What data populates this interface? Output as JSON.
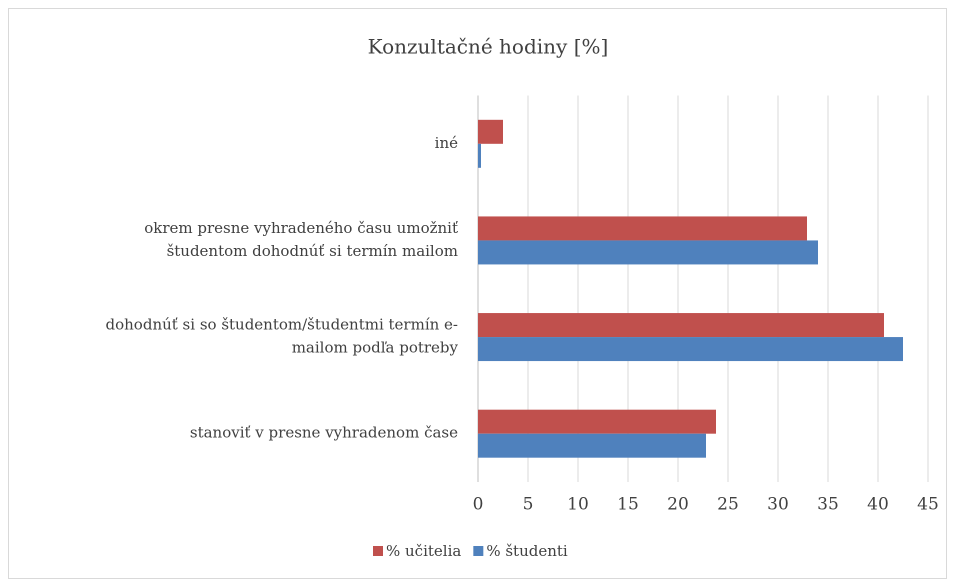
{
  "chart_data": {
    "type": "hbar",
    "title": "Konzultačné hodiny [%]",
    "categories": [
      [
        "iné"
      ],
      [
        "okrem presne vyhradeného času umožniť",
        "študentom dohodnúť si termín mailom"
      ],
      [
        "dohodnúť si so študentom/študentmi termín e-",
        "mailom podľa potreby"
      ],
      [
        "stanoviť v presne vyhradenom čase"
      ]
    ],
    "series": [
      {
        "name": "% učitelia",
        "color": "#c0504d",
        "values": [
          2.5,
          32.9,
          40.6,
          23.8
        ]
      },
      {
        "name": "% študenti",
        "color": "#4f81bd",
        "values": [
          0.3,
          34.0,
          42.5,
          22.8
        ]
      }
    ],
    "xlim": [
      0,
      45
    ],
    "xticks": [
      0,
      5,
      10,
      15,
      20,
      25,
      30,
      35,
      40,
      45
    ],
    "grid": true,
    "legend": "bottom"
  }
}
